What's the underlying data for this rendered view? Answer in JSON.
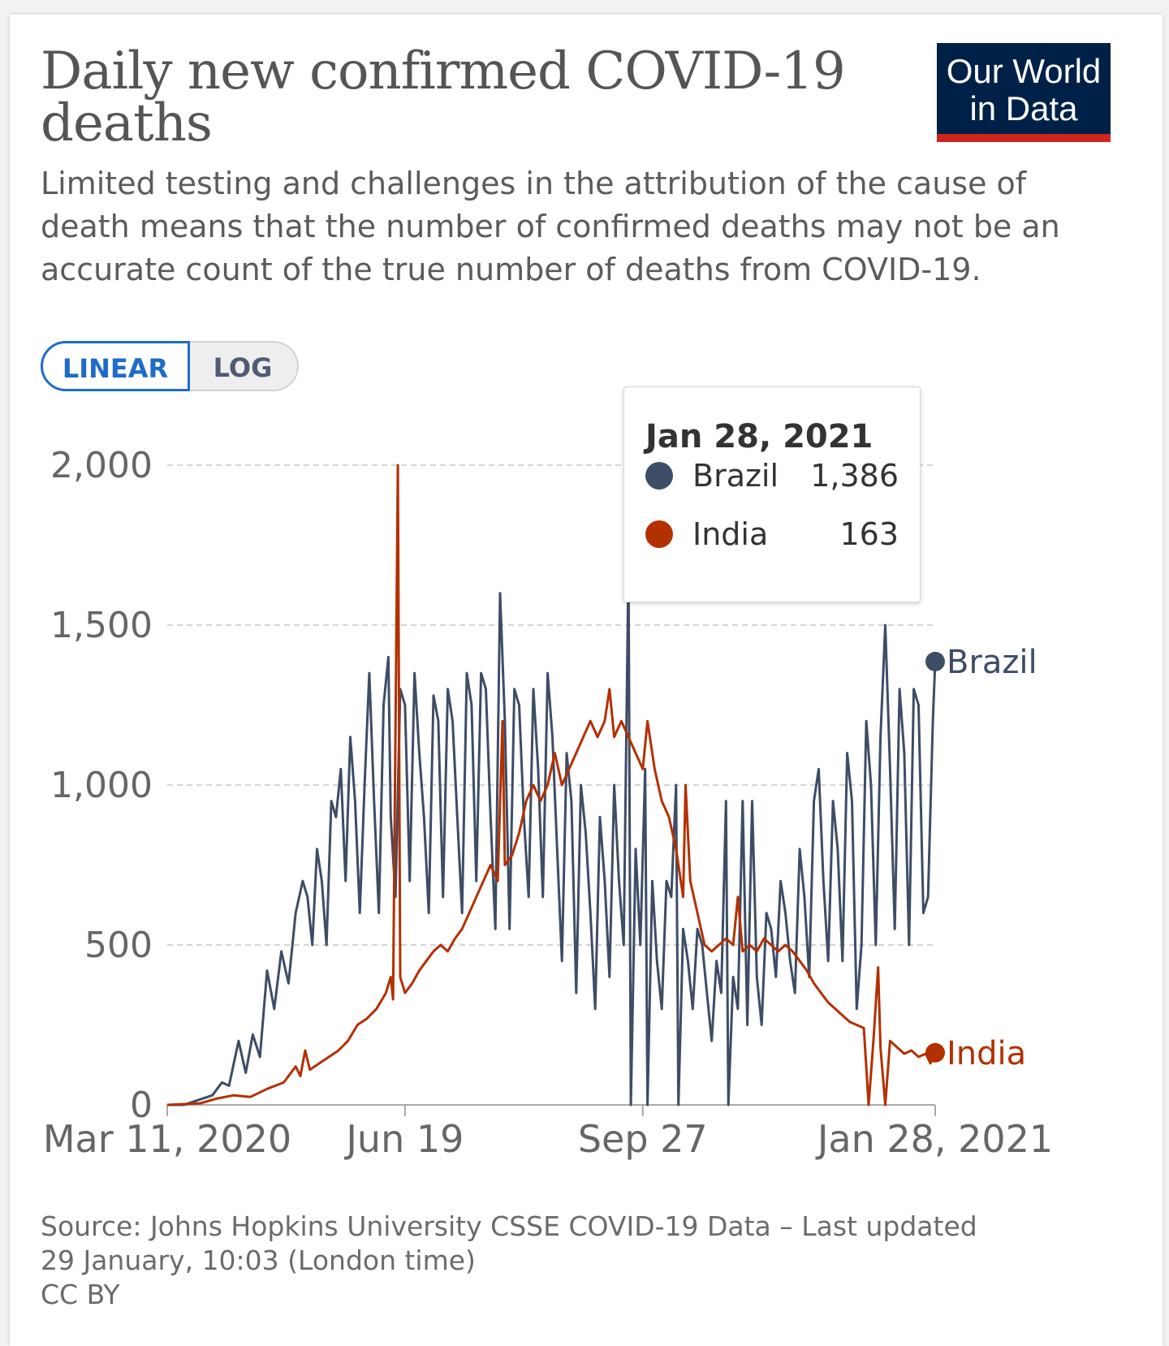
{
  "title": "Daily new confirmed COVID-19 deaths",
  "subtitle": "Limited testing and challenges in the attribution of the cause of death means that the number of confirmed deaths may not be an accurate count of the true number of deaths from COVID-19.",
  "logo": {
    "line1": "Our World",
    "line2": "in Data",
    "bg_color": "#002147",
    "accent_color": "#ce261e"
  },
  "scale_toggle": {
    "options": [
      "LINEAR",
      "LOG"
    ],
    "selected": "LINEAR"
  },
  "tooltip": {
    "date": "Jan 28, 2021",
    "rows": [
      {
        "name": "Brazil",
        "value": "1,386",
        "color": "#3d4d66"
      },
      {
        "name": "India",
        "value": "163",
        "color": "#b33000"
      }
    ]
  },
  "footer": {
    "source": "Source: Johns Hopkins University CSSE COVID-19 Data – Last updated",
    "updated": "29 January, 10:03 (London time)",
    "license": "CC BY"
  },
  "chart_data": {
    "type": "line",
    "x_start": "2020-03-11",
    "x_end": "2021-01-28",
    "ylim": [
      0,
      2000
    ],
    "y_ticks": [
      0,
      500,
      1000,
      1500,
      2000
    ],
    "y_tick_labels": [
      "0",
      "500",
      "1,000",
      "1,500",
      "2,000"
    ],
    "x_ticks": [
      "2020-03-11",
      "2020-06-19",
      "2020-09-27",
      "2021-01-28"
    ],
    "x_tick_labels": [
      "Mar 11, 2020",
      "Jun 19",
      "Sep 27",
      "Jan 28, 2021"
    ],
    "grid": "horizontal dashed",
    "legend": "end-of-line labels",
    "series": [
      {
        "name": "Brazil",
        "color": "#3d4d66",
        "end_label": "Brazil",
        "points": [
          [
            "2020-03-11",
            0
          ],
          [
            "2020-03-18",
            0
          ],
          [
            "2020-03-22",
            10
          ],
          [
            "2020-03-26",
            20
          ],
          [
            "2020-03-30",
            30
          ],
          [
            "2020-04-03",
            70
          ],
          [
            "2020-04-06",
            60
          ],
          [
            "2020-04-10",
            200
          ],
          [
            "2020-04-13",
            100
          ],
          [
            "2020-04-16",
            220
          ],
          [
            "2020-04-19",
            150
          ],
          [
            "2020-04-22",
            420
          ],
          [
            "2020-04-25",
            300
          ],
          [
            "2020-04-28",
            480
          ],
          [
            "2020-05-01",
            380
          ],
          [
            "2020-05-04",
            600
          ],
          [
            "2020-05-07",
            700
          ],
          [
            "2020-05-09",
            650
          ],
          [
            "2020-05-11",
            500
          ],
          [
            "2020-05-13",
            800
          ],
          [
            "2020-05-15",
            700
          ],
          [
            "2020-05-17",
            500
          ],
          [
            "2020-05-19",
            950
          ],
          [
            "2020-05-21",
            900
          ],
          [
            "2020-05-23",
            1050
          ],
          [
            "2020-05-25",
            700
          ],
          [
            "2020-05-27",
            1150
          ],
          [
            "2020-05-29",
            950
          ],
          [
            "2020-05-31",
            600
          ],
          [
            "2020-06-02",
            1000
          ],
          [
            "2020-06-04",
            1350
          ],
          [
            "2020-06-06",
            950
          ],
          [
            "2020-06-08",
            600
          ],
          [
            "2020-06-10",
            1250
          ],
          [
            "2020-06-12",
            1400
          ],
          [
            "2020-06-13",
            900
          ],
          [
            "2020-06-15",
            650
          ],
          [
            "2020-06-17",
            1300
          ],
          [
            "2020-06-19",
            1250
          ],
          [
            "2020-06-21",
            700
          ],
          [
            "2020-06-23",
            1350
          ],
          [
            "2020-06-25",
            1100
          ],
          [
            "2020-06-27",
            900
          ],
          [
            "2020-06-29",
            600
          ],
          [
            "2020-07-01",
            1280
          ],
          [
            "2020-07-03",
            1200
          ],
          [
            "2020-07-05",
            650
          ],
          [
            "2020-07-07",
            1300
          ],
          [
            "2020-07-09",
            1200
          ],
          [
            "2020-07-11",
            900
          ],
          [
            "2020-07-13",
            600
          ],
          [
            "2020-07-15",
            1350
          ],
          [
            "2020-07-17",
            1250
          ],
          [
            "2020-07-19",
            700
          ],
          [
            "2020-07-21",
            1350
          ],
          [
            "2020-07-23",
            1300
          ],
          [
            "2020-07-25",
            900
          ],
          [
            "2020-07-27",
            550
          ],
          [
            "2020-07-29",
            1600
          ],
          [
            "2020-07-31",
            1200
          ],
          [
            "2020-08-02",
            550
          ],
          [
            "2020-08-04",
            1300
          ],
          [
            "2020-08-06",
            1250
          ],
          [
            "2020-08-08",
            900
          ],
          [
            "2020-08-10",
            650
          ],
          [
            "2020-08-12",
            1300
          ],
          [
            "2020-08-14",
            1050
          ],
          [
            "2020-08-16",
            650
          ],
          [
            "2020-08-18",
            1350
          ],
          [
            "2020-08-20",
            1150
          ],
          [
            "2020-08-22",
            800
          ],
          [
            "2020-08-24",
            450
          ],
          [
            "2020-08-26",
            1100
          ],
          [
            "2020-08-28",
            950
          ],
          [
            "2020-08-30",
            350
          ],
          [
            "2020-09-01",
            1000
          ],
          [
            "2020-09-03",
            850
          ],
          [
            "2020-09-05",
            600
          ],
          [
            "2020-09-07",
            300
          ],
          [
            "2020-09-09",
            900
          ],
          [
            "2020-09-11",
            700
          ],
          [
            "2020-09-13",
            400
          ],
          [
            "2020-09-15",
            1000
          ],
          [
            "2020-09-17",
            700
          ],
          [
            "2020-09-19",
            500
          ],
          [
            "2020-09-21",
            1700
          ],
          [
            "2020-09-22",
            0
          ],
          [
            "2020-09-24",
            800
          ],
          [
            "2020-09-26",
            500
          ],
          [
            "2020-09-28",
            1050
          ],
          [
            "2020-09-29",
            0
          ],
          [
            "2020-10-01",
            700
          ],
          [
            "2020-10-03",
            450
          ],
          [
            "2020-10-05",
            300
          ],
          [
            "2020-10-07",
            700
          ],
          [
            "2020-10-09",
            650
          ],
          [
            "2020-10-11",
            1000
          ],
          [
            "2020-10-12",
            0
          ],
          [
            "2020-10-14",
            550
          ],
          [
            "2020-10-16",
            450
          ],
          [
            "2020-10-18",
            300
          ],
          [
            "2020-10-20",
            550
          ],
          [
            "2020-10-22",
            500
          ],
          [
            "2020-10-24",
            350
          ],
          [
            "2020-10-26",
            200
          ],
          [
            "2020-10-28",
            450
          ],
          [
            "2020-10-30",
            350
          ],
          [
            "2020-11-01",
            950
          ],
          [
            "2020-11-02",
            0
          ],
          [
            "2020-11-04",
            400
          ],
          [
            "2020-11-06",
            300
          ],
          [
            "2020-11-08",
            950
          ],
          [
            "2020-11-10",
            250
          ],
          [
            "2020-11-12",
            950
          ],
          [
            "2020-11-14",
            400
          ],
          [
            "2020-11-16",
            250
          ],
          [
            "2020-11-18",
            600
          ],
          [
            "2020-11-20",
            550
          ],
          [
            "2020-11-22",
            400
          ],
          [
            "2020-11-24",
            700
          ],
          [
            "2020-11-26",
            600
          ],
          [
            "2020-11-28",
            450
          ],
          [
            "2020-11-30",
            350
          ],
          [
            "2020-12-02",
            800
          ],
          [
            "2020-12-04",
            650
          ],
          [
            "2020-12-06",
            400
          ],
          [
            "2020-12-08",
            950
          ],
          [
            "2020-12-10",
            1050
          ],
          [
            "2020-12-12",
            700
          ],
          [
            "2020-12-14",
            450
          ],
          [
            "2020-12-16",
            950
          ],
          [
            "2020-12-18",
            800
          ],
          [
            "2020-12-20",
            450
          ],
          [
            "2020-12-22",
            1100
          ],
          [
            "2020-12-24",
            950
          ],
          [
            "2020-12-26",
            300
          ],
          [
            "2020-12-28",
            500
          ],
          [
            "2020-12-30",
            1200
          ],
          [
            "2021-01-01",
            1000
          ],
          [
            "2021-01-03",
            500
          ],
          [
            "2021-01-05",
            1150
          ],
          [
            "2021-01-07",
            1500
          ],
          [
            "2021-01-09",
            1050
          ],
          [
            "2021-01-11",
            550
          ],
          [
            "2021-01-13",
            1300
          ],
          [
            "2021-01-15",
            1100
          ],
          [
            "2021-01-17",
            500
          ],
          [
            "2021-01-19",
            1300
          ],
          [
            "2021-01-21",
            1250
          ],
          [
            "2021-01-23",
            600
          ],
          [
            "2021-01-25",
            650
          ],
          [
            "2021-01-27",
            1200
          ],
          [
            "2021-01-28",
            1386
          ]
        ]
      },
      {
        "name": "India",
        "color": "#b33000",
        "end_label": "India",
        "points": [
          [
            "2020-03-11",
            0
          ],
          [
            "2020-03-25",
            5
          ],
          [
            "2020-04-01",
            20
          ],
          [
            "2020-04-08",
            30
          ],
          [
            "2020-04-15",
            25
          ],
          [
            "2020-04-22",
            50
          ],
          [
            "2020-04-29",
            70
          ],
          [
            "2020-05-04",
            120
          ],
          [
            "2020-05-06",
            90
          ],
          [
            "2020-05-08",
            170
          ],
          [
            "2020-05-10",
            110
          ],
          [
            "2020-05-14",
            130
          ],
          [
            "2020-05-18",
            150
          ],
          [
            "2020-05-22",
            170
          ],
          [
            "2020-05-26",
            200
          ],
          [
            "2020-05-30",
            250
          ],
          [
            "2020-06-03",
            270
          ],
          [
            "2020-06-07",
            300
          ],
          [
            "2020-06-11",
            350
          ],
          [
            "2020-06-13",
            400
          ],
          [
            "2020-06-14",
            330
          ],
          [
            "2020-06-16",
            2000
          ],
          [
            "2020-06-17",
            400
          ],
          [
            "2020-06-19",
            350
          ],
          [
            "2020-06-22",
            380
          ],
          [
            "2020-06-25",
            420
          ],
          [
            "2020-06-28",
            450
          ],
          [
            "2020-07-01",
            480
          ],
          [
            "2020-07-04",
            500
          ],
          [
            "2020-07-07",
            480
          ],
          [
            "2020-07-10",
            520
          ],
          [
            "2020-07-13",
            550
          ],
          [
            "2020-07-16",
            600
          ],
          [
            "2020-07-19",
            650
          ],
          [
            "2020-07-22",
            700
          ],
          [
            "2020-07-25",
            750
          ],
          [
            "2020-07-28",
            700
          ],
          [
            "2020-07-30",
            1200
          ],
          [
            "2020-07-31",
            750
          ],
          [
            "2020-08-03",
            780
          ],
          [
            "2020-08-06",
            850
          ],
          [
            "2020-08-09",
            950
          ],
          [
            "2020-08-12",
            1000
          ],
          [
            "2020-08-15",
            950
          ],
          [
            "2020-08-18",
            1000
          ],
          [
            "2020-08-21",
            1100
          ],
          [
            "2020-08-24",
            1000
          ],
          [
            "2020-08-27",
            1050
          ],
          [
            "2020-08-30",
            1100
          ],
          [
            "2020-09-02",
            1150
          ],
          [
            "2020-09-05",
            1200
          ],
          [
            "2020-09-08",
            1150
          ],
          [
            "2020-09-11",
            1200
          ],
          [
            "2020-09-13",
            1300
          ],
          [
            "2020-09-15",
            1150
          ],
          [
            "2020-09-18",
            1200
          ],
          [
            "2020-09-21",
            1150
          ],
          [
            "2020-09-24",
            1100
          ],
          [
            "2020-09-27",
            1050
          ],
          [
            "2020-09-29",
            1200
          ],
          [
            "2020-10-02",
            1050
          ],
          [
            "2020-10-05",
            950
          ],
          [
            "2020-10-08",
            900
          ],
          [
            "2020-10-11",
            800
          ],
          [
            "2020-10-14",
            650
          ],
          [
            "2020-10-15",
            1000
          ],
          [
            "2020-10-17",
            700
          ],
          [
            "2020-10-20",
            600
          ],
          [
            "2020-10-23",
            500
          ],
          [
            "2020-10-26",
            480
          ],
          [
            "2020-10-29",
            500
          ],
          [
            "2020-11-01",
            520
          ],
          [
            "2020-11-04",
            500
          ],
          [
            "2020-11-06",
            650
          ],
          [
            "2020-11-08",
            480
          ],
          [
            "2020-11-11",
            500
          ],
          [
            "2020-11-14",
            480
          ],
          [
            "2020-11-17",
            520
          ],
          [
            "2020-11-20",
            500
          ],
          [
            "2020-11-23",
            480
          ],
          [
            "2020-11-26",
            500
          ],
          [
            "2020-11-29",
            480
          ],
          [
            "2020-12-02",
            450
          ],
          [
            "2020-12-05",
            420
          ],
          [
            "2020-12-08",
            380
          ],
          [
            "2020-12-11",
            350
          ],
          [
            "2020-12-14",
            320
          ],
          [
            "2020-12-17",
            300
          ],
          [
            "2020-12-20",
            280
          ],
          [
            "2020-12-23",
            260
          ],
          [
            "2020-12-26",
            250
          ],
          [
            "2020-12-29",
            240
          ],
          [
            "2020-12-31",
            0
          ],
          [
            "2021-01-02",
            200
          ],
          [
            "2021-01-04",
            430
          ],
          [
            "2021-01-05",
            180
          ],
          [
            "2021-01-07",
            0
          ],
          [
            "2021-01-09",
            200
          ],
          [
            "2021-01-12",
            180
          ],
          [
            "2021-01-15",
            160
          ],
          [
            "2021-01-18",
            170
          ],
          [
            "2021-01-21",
            150
          ],
          [
            "2021-01-24",
            160
          ],
          [
            "2021-01-26",
            130
          ],
          [
            "2021-01-28",
            163
          ]
        ]
      }
    ]
  }
}
